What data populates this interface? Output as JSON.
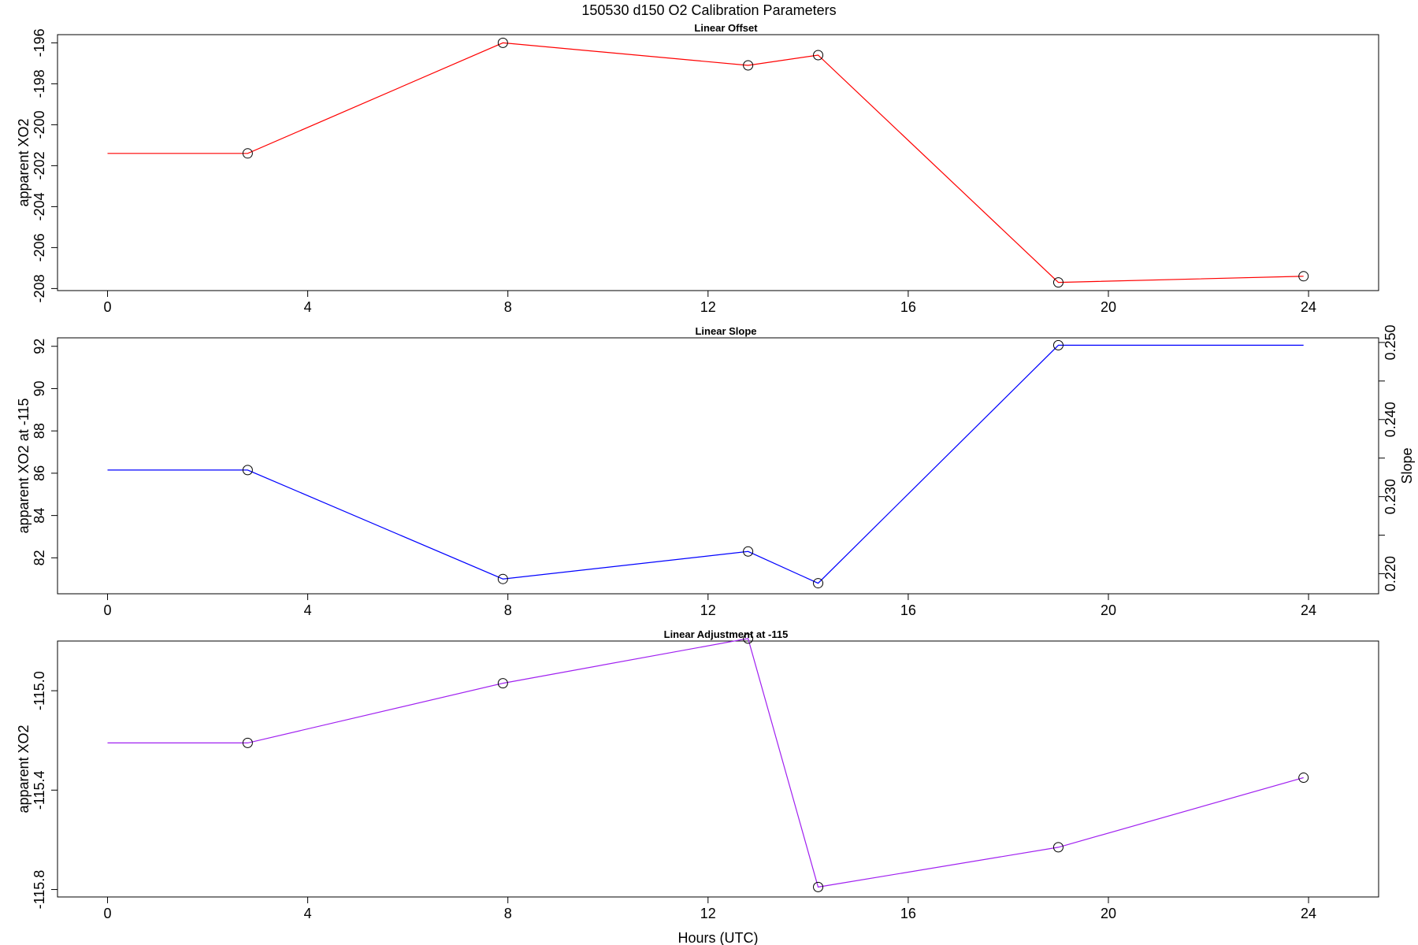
{
  "title": "150530   d150   O2 Calibration Parameters",
  "chart_data": [
    {
      "type": "line",
      "title": "Linear Offset",
      "xlabel": "",
      "ylabel": "apparent XO2",
      "xlim": [
        -1,
        25.4
      ],
      "ylim": [
        -208.1,
        -195.6
      ],
      "xticks": [
        0,
        4,
        8,
        12,
        16,
        20,
        24
      ],
      "xtick_labels": [
        "0",
        "4",
        "8",
        "12",
        "16",
        "20",
        "24"
      ],
      "yticks": [
        -208,
        -206,
        -204,
        -202,
        -200,
        -198,
        -196
      ],
      "ytick_labels": [
        "-208",
        "-206",
        "-204",
        "-202",
        "-200",
        "-198",
        "-196"
      ],
      "grid": false,
      "color": "#ff0000",
      "series": [
        {
          "x": [
            0,
            2.8,
            7.9,
            12.8,
            14.2,
            19.0,
            23.9
          ],
          "y": [
            -201.4,
            -201.4,
            -196.0,
            -197.1,
            -196.6,
            -207.7,
            -207.4
          ]
        }
      ],
      "markers": {
        "x": [
          2.8,
          7.9,
          12.8,
          14.2,
          19.0,
          23.9
        ],
        "y": [
          -201.4,
          -196.0,
          -197.1,
          -196.6,
          -207.7,
          -207.4
        ]
      }
    },
    {
      "type": "line",
      "title": "Linear Slope",
      "xlabel": "",
      "ylabel": "apparent XO2 at -115",
      "y2label": "Slope",
      "xlim": [
        -1,
        25.4
      ],
      "ylim": [
        80.3,
        92.4
      ],
      "xticks": [
        0,
        4,
        8,
        12,
        16,
        20,
        24
      ],
      "xtick_labels": [
        "0",
        "4",
        "8",
        "12",
        "16",
        "20",
        "24"
      ],
      "yticks": [
        82,
        84,
        86,
        88,
        90,
        92
      ],
      "ytick_labels": [
        "82",
        "84",
        "86",
        "88",
        "90",
        "92"
      ],
      "y2lim": [
        0.2174,
        0.2506
      ],
      "y2ticks": [
        0.22,
        0.225,
        0.23,
        0.235,
        0.24,
        0.245,
        0.25
      ],
      "y2tick_labels": [
        "0.220",
        "",
        "0.230",
        "",
        "0.240",
        "",
        "0.250"
      ],
      "grid": false,
      "color": "#0000ff",
      "series": [
        {
          "x": [
            0,
            2.8,
            7.9,
            12.8,
            14.2,
            19.0,
            23.9
          ],
          "y": [
            86.15,
            86.15,
            81.0,
            82.3,
            80.8,
            92.05,
            92.05
          ]
        }
      ],
      "markers": {
        "x": [
          2.8,
          7.9,
          12.8,
          14.2,
          19.0
        ],
        "y": [
          86.15,
          81.0,
          82.3,
          80.8,
          92.05
        ]
      }
    },
    {
      "type": "line",
      "title": "Linear Adjustment at -115",
      "xlabel": "Hours (UTC)",
      "ylabel": "apparent XO2",
      "xlim": [
        -1,
        25.4
      ],
      "ylim": [
        -115.83,
        -114.8
      ],
      "xticks": [
        0,
        4,
        8,
        12,
        16,
        20,
        24
      ],
      "xtick_labels": [
        "0",
        "4",
        "8",
        "12",
        "16",
        "20",
        "24"
      ],
      "yticks": [
        -115.8,
        -115.4,
        -115.0
      ],
      "ytick_labels": [
        "-115.8",
        "-115.4",
        "-115.0"
      ],
      "grid": false,
      "color": "#a020f0",
      "series": [
        {
          "x": [
            0,
            2.8,
            7.9,
            12.8,
            14.2,
            19.0,
            23.9
          ],
          "y": [
            -115.21,
            -115.21,
            -114.97,
            -114.79,
            -115.79,
            -115.63,
            -115.35
          ]
        }
      ],
      "markers": {
        "x": [
          2.8,
          7.9,
          12.8,
          14.2,
          19.0,
          23.9
        ],
        "y": [
          -115.21,
          -114.97,
          -114.79,
          -115.79,
          -115.63,
          -115.35
        ]
      }
    }
  ]
}
